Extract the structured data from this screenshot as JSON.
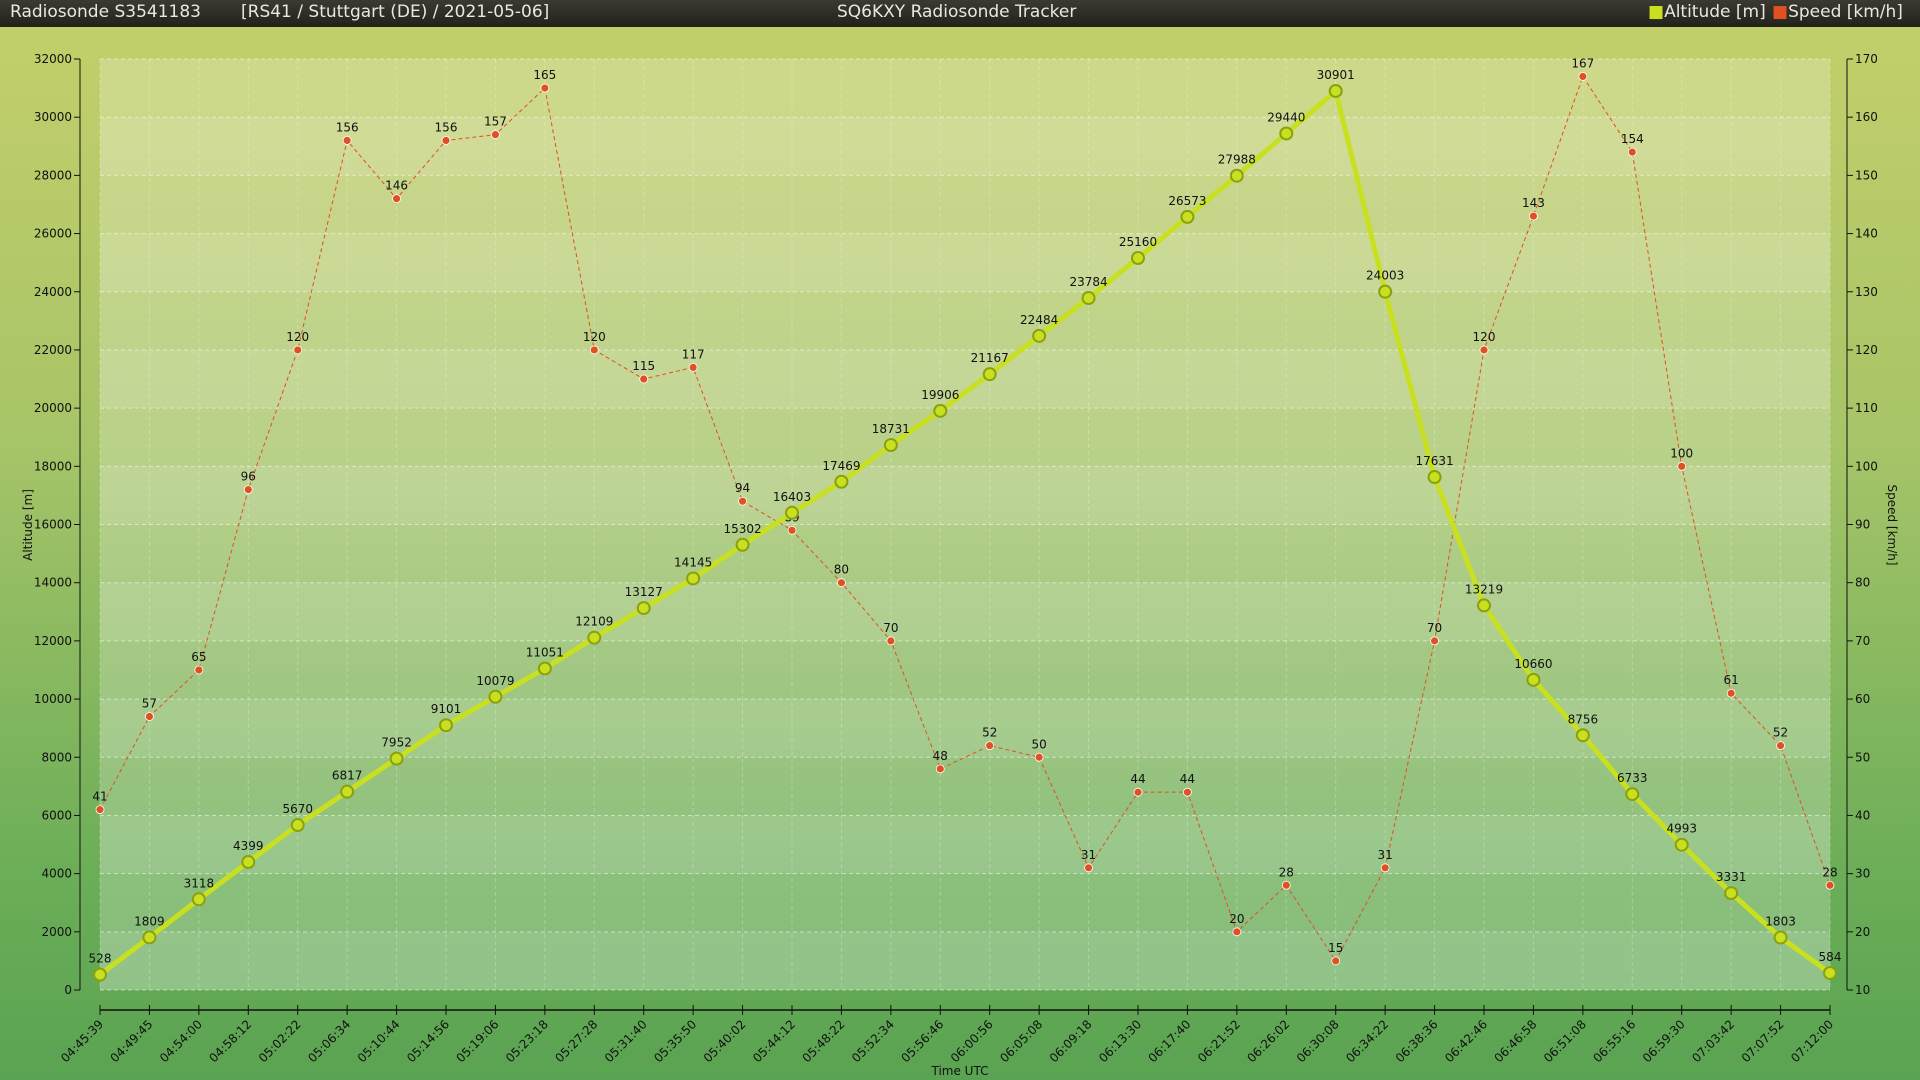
{
  "header": {
    "title_left": "Radiosonde S3541183",
    "subtitle": "[RS41 / Stuttgart (DE) / 2021-05-06]",
    "app_title": "SQ6KXY Radiosonde Tracker"
  },
  "colors": {
    "altitude": "#c8e020",
    "speed": "#e05020"
  },
  "chart_data": {
    "type": "line",
    "title": "SQ6KXY Radiosonde Tracker",
    "xlabel": "Time UTC",
    "ylabel": "Altitude [m]",
    "y2label": "Speed [km/h]",
    "ylim": [
      0,
      32000
    ],
    "y2lim": [
      10,
      170
    ],
    "yticks": [
      0,
      2000,
      4000,
      6000,
      8000,
      10000,
      12000,
      14000,
      16000,
      18000,
      20000,
      22000,
      24000,
      26000,
      28000,
      30000,
      32000
    ],
    "y2ticks": [
      10,
      20,
      30,
      40,
      50,
      60,
      70,
      80,
      90,
      100,
      110,
      120,
      130,
      140,
      150,
      160,
      170
    ],
    "legend": [
      "Altitude [m]",
      "Speed [km/h]"
    ],
    "legend_position": "top-right",
    "x": [
      "04:45:39",
      "04:49:45",
      "04:54:00",
      "04:58:12",
      "05:02:22",
      "05:06:34",
      "05:10:44",
      "05:14:56",
      "05:19:06",
      "05:23:18",
      "05:27:28",
      "05:31:40",
      "05:35:50",
      "05:40:02",
      "05:44:12",
      "05:48:22",
      "05:52:34",
      "05:56:46",
      "06:00:56",
      "06:05:08",
      "06:09:18",
      "06:13:30",
      "06:17:40",
      "06:21:52",
      "06:26:02",
      "06:30:08",
      "06:34:22",
      "06:38:36",
      "06:42:46",
      "06:46:58",
      "06:51:08",
      "06:55:16",
      "06:59:30",
      "07:03:42",
      "07:07:52",
      "07:12:00"
    ],
    "series": [
      {
        "name": "Altitude [m]",
        "axis": "left",
        "values": [
          528,
          1809,
          3118,
          4399,
          5670,
          6817,
          7952,
          9101,
          10079,
          11051,
          12109,
          13127,
          14145,
          15302,
          16403,
          17469,
          18731,
          19906,
          21167,
          22484,
          23784,
          25160,
          26573,
          27988,
          29440,
          30901,
          24003,
          17631,
          13219,
          10660,
          8756,
          6733,
          4993,
          3331,
          1803,
          584
        ]
      },
      {
        "name": "Speed [km/h]",
        "axis": "right",
        "values": [
          41,
          57,
          65,
          96,
          120,
          156,
          146,
          156,
          157,
          165,
          120,
          115,
          117,
          94,
          89,
          80,
          70,
          48,
          52,
          50,
          31,
          44,
          44,
          20,
          28,
          15,
          31,
          70,
          120,
          143,
          167,
          154,
          100,
          61,
          52,
          28
        ]
      }
    ]
  }
}
